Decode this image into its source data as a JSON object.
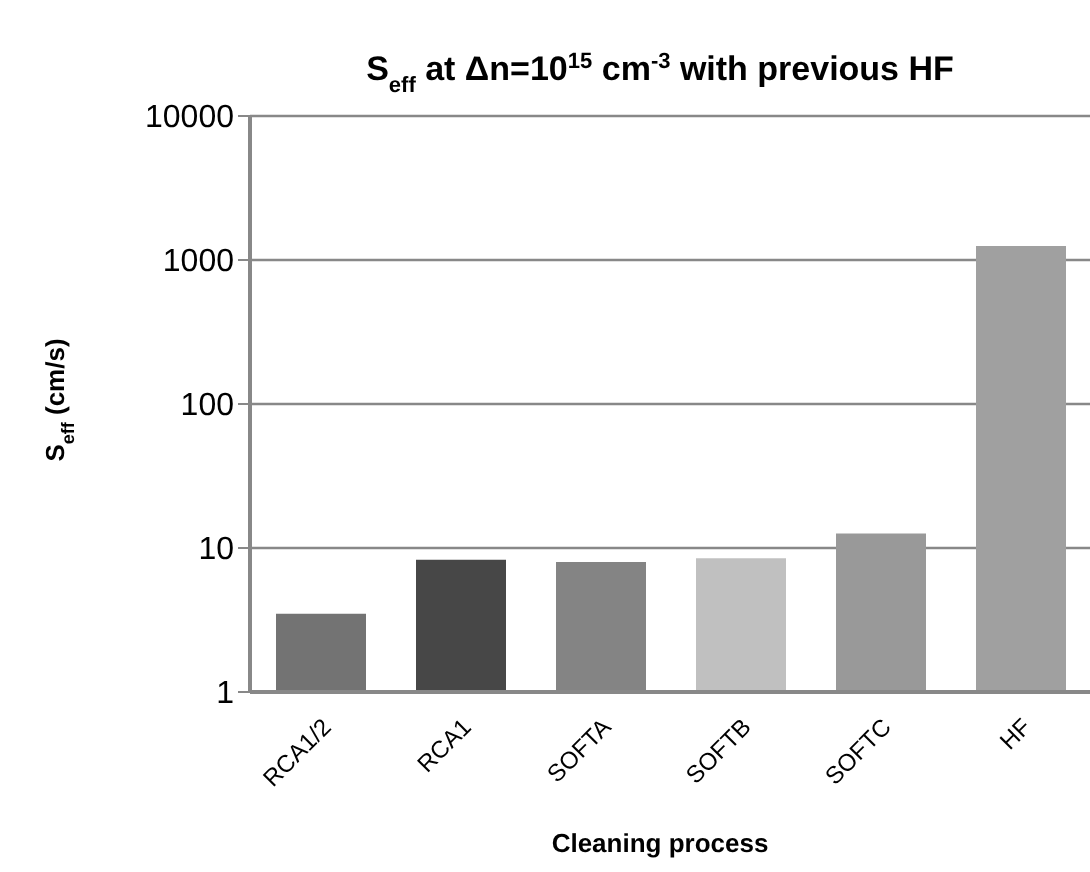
{
  "chart_data": {
    "type": "bar",
    "title": "S$_{eff}$ at Δn=10$^{15}$ cm$^{-3}$ with previous HF",
    "xlabel": "Cleaning process",
    "ylabel": "S$_{eff}$ (cm/s)",
    "categories": [
      "RCA1/2",
      "RCA1",
      "SOFTA",
      "SOFTB",
      "SOFTC",
      "HF"
    ],
    "values": [
      3.5,
      8.3,
      8.0,
      8.5,
      12.6,
      1250
    ],
    "colors": [
      "#737373",
      "#474747",
      "#848484",
      "#c0c0c0",
      "#999999",
      "#a0a0a0"
    ],
    "log": "y",
    "ylim": [
      1,
      10000
    ],
    "yticks": [
      1,
      10,
      100,
      1000,
      10000
    ],
    "grid": "y"
  }
}
